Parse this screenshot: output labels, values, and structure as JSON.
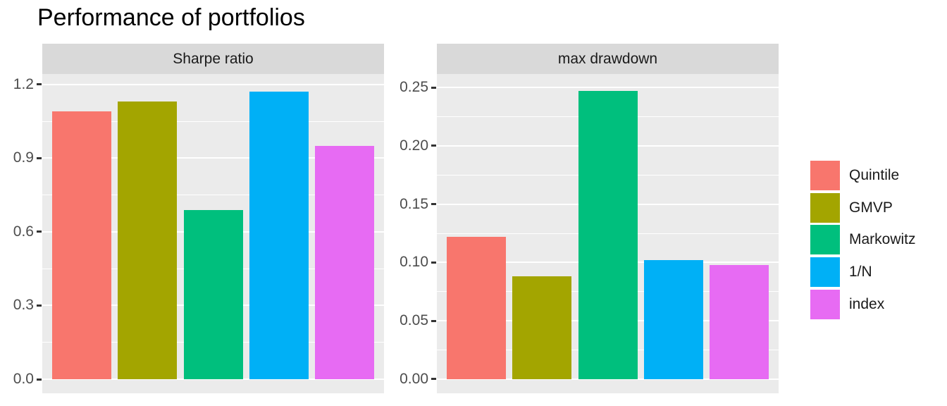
{
  "title": "Performance of portfolios",
  "legend": {
    "position": "right",
    "entries": [
      {
        "label": "Quintile",
        "color": "#F8766D"
      },
      {
        "label": "GMVP",
        "color": "#A3A500"
      },
      {
        "label": "Markowitz",
        "color": "#00BF7D"
      },
      {
        "label": "1/N",
        "color": "#00B0F6"
      },
      {
        "label": "index",
        "color": "#E76BF3"
      }
    ]
  },
  "chart_data": [
    {
      "type": "bar",
      "facet": "Sharpe ratio",
      "categories": [
        "Quintile",
        "GMVP",
        "Markowitz",
        "1/N",
        "index"
      ],
      "values": [
        1.09,
        1.13,
        0.69,
        1.17,
        0.95
      ],
      "yticks": [
        {
          "value": 0.0,
          "label": "0.0"
        },
        {
          "value": 0.3,
          "label": "0.3"
        },
        {
          "value": 0.6,
          "label": "0.6"
        },
        {
          "value": 0.9,
          "label": "0.9"
        },
        {
          "value": 1.2,
          "label": "1.2"
        }
      ],
      "ylim": [
        -0.0574,
        1.243
      ],
      "grid": true,
      "xlabel": "",
      "ylabel": ""
    },
    {
      "type": "bar",
      "facet": "max drawdown",
      "categories": [
        "Quintile",
        "GMVP",
        "Markowitz",
        "1/N",
        "index"
      ],
      "values": [
        0.122,
        0.088,
        0.247,
        0.102,
        0.098
      ],
      "yticks": [
        {
          "value": 0.0,
          "label": "0.00"
        },
        {
          "value": 0.05,
          "label": "0.05"
        },
        {
          "value": 0.1,
          "label": "0.10"
        },
        {
          "value": 0.15,
          "label": "0.15"
        },
        {
          "value": 0.2,
          "label": "0.20"
        },
        {
          "value": 0.25,
          "label": "0.25"
        }
      ],
      "ylim": [
        -0.0121,
        0.2615
      ],
      "grid": true,
      "xlabel": "",
      "ylabel": ""
    }
  ],
  "style": {
    "background": "#FFFFFF",
    "panel_bg": "#EBEBEB",
    "strip_bg": "#D9D9D9",
    "grid_color": "#FFFFFF",
    "axis_text_color": "#4D4D4D",
    "strip_text_color": "#1A1A1A",
    "legend_text_color": "#1A1A1A",
    "tick_mark_color": "#333333",
    "title_color": "#000000"
  }
}
